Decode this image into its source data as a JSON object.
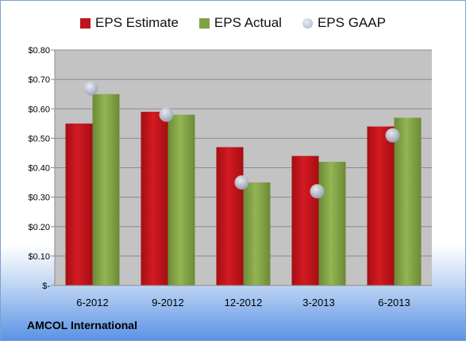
{
  "chart_data": {
    "type": "bar",
    "categories": [
      "6-2012",
      "9-2012",
      "12-2012",
      "3-2013",
      "6-2013"
    ],
    "series": [
      {
        "name": "EPS Estimate",
        "kind": "bar",
        "color": "#c0141c",
        "values": [
          0.55,
          0.59,
          0.47,
          0.44,
          0.54
        ]
      },
      {
        "name": "EPS Actual",
        "kind": "bar",
        "color": "#80a144",
        "values": [
          0.65,
          0.58,
          0.35,
          0.42,
          0.57
        ]
      },
      {
        "name": "EPS GAAP",
        "kind": "scatter",
        "color": "#b3bdcb",
        "values": [
          0.67,
          0.58,
          0.35,
          0.32,
          0.51
        ]
      }
    ],
    "yticks": [
      "$-",
      "$0.10",
      "$0.20",
      "$0.30",
      "$0.40",
      "$0.50",
      "$0.60",
      "$0.70",
      "$0.80"
    ],
    "ylim": [
      0,
      0.8
    ],
    "grid": true,
    "legend_position": "top"
  },
  "company": "AMCOL International"
}
